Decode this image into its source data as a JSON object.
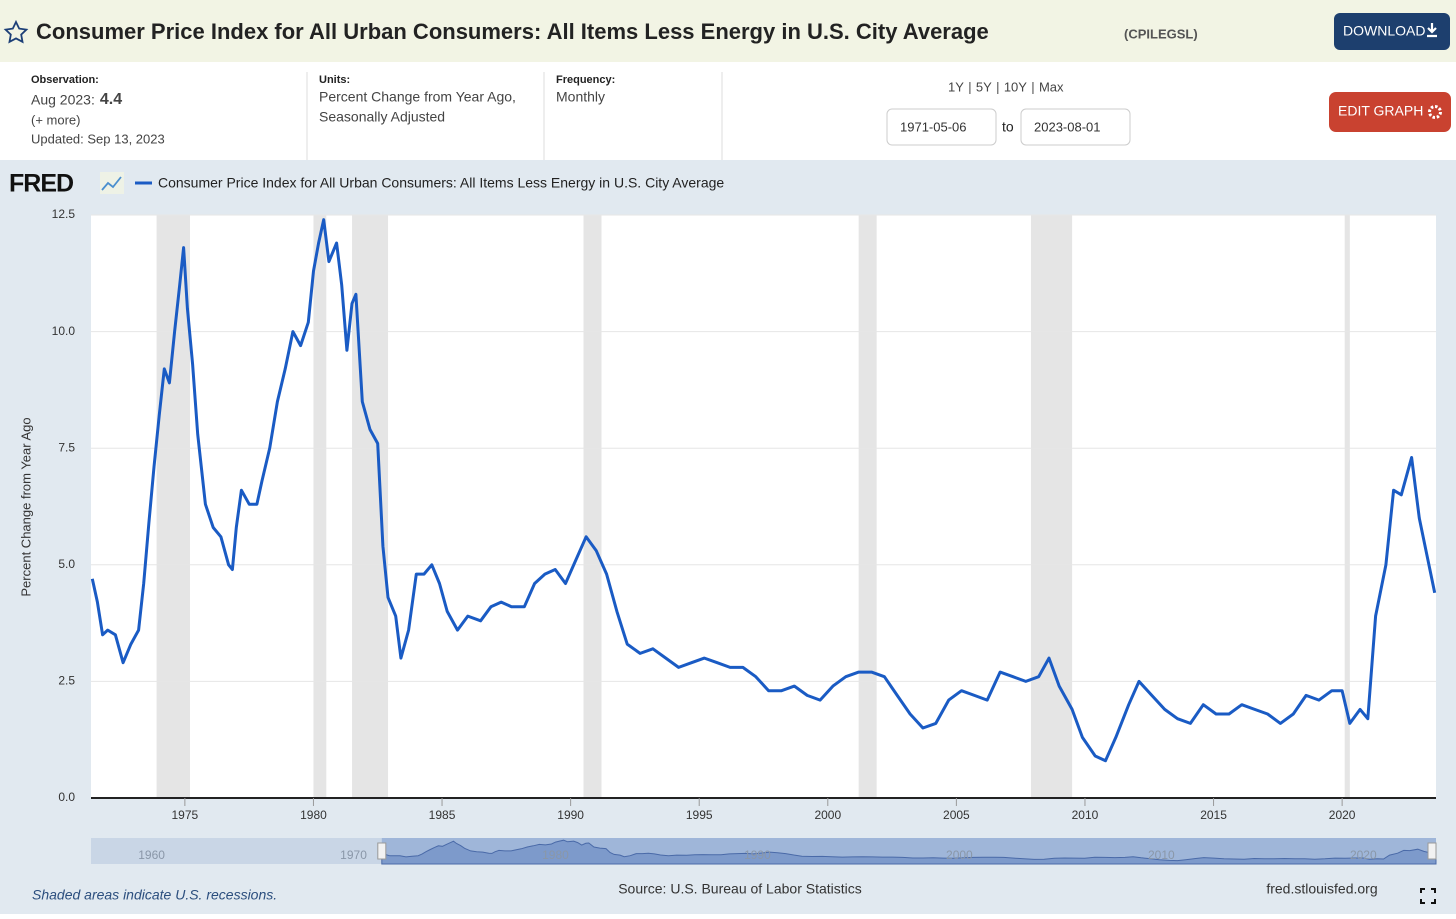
{
  "header": {
    "title": "Consumer Price Index for All Urban Consumers: All Items Less Energy in U.S. City Average",
    "series_id": "(CPILEGSL)",
    "download": "DOWNLOAD"
  },
  "info": {
    "observation_label": "Observation:",
    "observation_date": "Aug 2023:",
    "observation_value": "4.4",
    "more": "(+ more)",
    "updated": "Updated: Sep 13, 2023",
    "units_label": "Units:",
    "units_value": [
      "Percent Change from Year Ago,",
      "Seasonally Adjusted"
    ],
    "frequency_label": "Frequency:",
    "frequency_value": "Monthly",
    "ranges": [
      "1Y",
      "5Y",
      "10Y",
      "Max"
    ],
    "start": "1971-05-06",
    "to": "to",
    "end": "2023-08-01",
    "edit": "EDIT GRAPH"
  },
  "chart_data": {
    "type": "line",
    "logo": "FRED",
    "ylabel": "Percent Change from Year Ago",
    "x": [
      1971.4,
      1971.6,
      1971.8,
      1972.0,
      1972.3,
      1972.6,
      1972.9,
      1973.2,
      1973.4,
      1973.6,
      1973.8,
      1974.0,
      1974.2,
      1974.4,
      1974.6,
      1974.8,
      1974.95,
      1975.1,
      1975.3,
      1975.5,
      1975.8,
      1976.1,
      1976.4,
      1976.7,
      1976.85,
      1977.0,
      1977.2,
      1977.5,
      1977.8,
      1978.0,
      1978.3,
      1978.6,
      1978.9,
      1979.2,
      1979.5,
      1979.8,
      1980.0,
      1980.2,
      1980.4,
      1980.6,
      1980.9,
      1981.1,
      1981.3,
      1981.5,
      1981.65,
      1981.9,
      1982.2,
      1982.5,
      1982.7,
      1982.9,
      1983.2,
      1983.4,
      1983.7,
      1984.0,
      1984.3,
      1984.6,
      1984.9,
      1985.2,
      1985.6,
      1986.0,
      1986.5,
      1986.9,
      1987.3,
      1987.7,
      1988.2,
      1988.6,
      1989.0,
      1989.4,
      1989.8,
      1990.2,
      1990.6,
      1991.0,
      1991.4,
      1991.8,
      1992.2,
      1992.7,
      1993.2,
      1993.7,
      1994.2,
      1994.7,
      1995.2,
      1995.7,
      1996.2,
      1996.7,
      1997.2,
      1997.7,
      1998.2,
      1998.7,
      1999.2,
      1999.7,
      2000.2,
      2000.7,
      2001.2,
      2001.7,
      2002.2,
      2002.7,
      2003.2,
      2003.7,
      2004.2,
      2004.7,
      2005.2,
      2005.7,
      2006.2,
      2006.7,
      2007.2,
      2007.7,
      2008.2,
      2008.6,
      2009.0,
      2009.5,
      2009.9,
      2010.4,
      2010.8,
      2011.2,
      2011.7,
      2012.1,
      2012.6,
      2013.1,
      2013.6,
      2014.1,
      2014.6,
      2015.1,
      2015.6,
      2016.1,
      2016.6,
      2017.1,
      2017.6,
      2018.1,
      2018.6,
      2019.1,
      2019.6,
      2020.0,
      2020.3,
      2020.7,
      2021.0,
      2021.3,
      2021.7,
      2022.0,
      2022.3,
      2022.7,
      2023.0,
      2023.3,
      2023.6
    ],
    "series": [
      {
        "name": "Consumer Price Index for All Urban Consumers: All Items Less Energy in U.S. City Average",
        "color": "#1a5bc4",
        "values": [
          4.7,
          4.2,
          3.5,
          3.6,
          3.5,
          2.9,
          3.3,
          3.6,
          4.6,
          5.9,
          7.1,
          8.2,
          9.2,
          8.9,
          10.0,
          11.0,
          11.8,
          10.5,
          9.3,
          7.8,
          6.3,
          5.8,
          5.6,
          5.0,
          4.9,
          5.8,
          6.6,
          6.3,
          6.3,
          6.8,
          7.5,
          8.5,
          9.2,
          10.0,
          9.7,
          10.2,
          11.3,
          11.9,
          12.4,
          11.5,
          11.9,
          11.0,
          9.6,
          10.6,
          10.8,
          8.5,
          7.9,
          7.6,
          5.4,
          4.3,
          3.9,
          3.0,
          3.6,
          4.8,
          4.8,
          5.0,
          4.6,
          4.0,
          3.6,
          3.9,
          3.8,
          4.1,
          4.2,
          4.1,
          4.1,
          4.6,
          4.8,
          4.9,
          4.6,
          5.1,
          5.6,
          5.3,
          4.8,
          4.0,
          3.3,
          3.1,
          3.2,
          3.0,
          2.8,
          2.9,
          3.0,
          2.9,
          2.8,
          2.8,
          2.6,
          2.3,
          2.3,
          2.4,
          2.2,
          2.1,
          2.4,
          2.6,
          2.7,
          2.7,
          2.6,
          2.2,
          1.8,
          1.5,
          1.6,
          2.1,
          2.3,
          2.2,
          2.1,
          2.7,
          2.6,
          2.5,
          2.6,
          3.0,
          2.4,
          1.9,
          1.3,
          0.9,
          0.8,
          1.3,
          2.0,
          2.5,
          2.2,
          1.9,
          1.7,
          1.6,
          2.0,
          1.8,
          1.8,
          2.0,
          1.9,
          1.8,
          1.6,
          1.8,
          2.2,
          2.1,
          2.3,
          2.3,
          1.6,
          1.9,
          1.7,
          3.9,
          5.0,
          6.6,
          6.5,
          7.3,
          6.0,
          5.2,
          4.4
        ]
      }
    ],
    "xlim": [
      1971.35,
      2023.65
    ],
    "xticks": [
      1975,
      1980,
      1985,
      1990,
      1995,
      2000,
      2005,
      2010,
      2015,
      2020
    ],
    "ylim": [
      0,
      12.5
    ],
    "yticks": [
      {
        "value": 0,
        "label": "0.0"
      },
      2.5,
      {
        "value": 5,
        "label": "5.0"
      },
      7.5,
      {
        "value": 10,
        "label": "10.0"
      },
      12.5
    ],
    "grid": true,
    "recessions": [
      [
        1973.9,
        1975.2
      ],
      [
        1980.0,
        1980.5
      ],
      [
        1981.5,
        1982.9
      ],
      [
        1990.5,
        1991.2
      ],
      [
        2001.2,
        2001.9
      ],
      [
        2007.9,
        2009.5
      ],
      [
        2020.1,
        2020.3
      ]
    ],
    "navigator": {
      "xlim": [
        1957,
        2023.6
      ],
      "xticks": [
        1960,
        1970,
        1980,
        1990,
        2000,
        2010,
        2020
      ]
    }
  },
  "footer": {
    "note": "Shaded areas indicate U.S. recessions.",
    "source": "Source: U.S. Bureau of Labor Statistics",
    "site": "fred.stlouisfed.org"
  }
}
